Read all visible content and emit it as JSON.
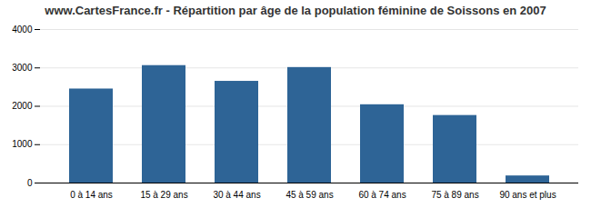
{
  "chart_data": {
    "type": "bar",
    "title": "www.CartesFrance.fr - Répartition par âge de la population féminine de Soissons en 2007",
    "categories": [
      "0 à 14 ans",
      "15 à 29 ans",
      "30 à 44 ans",
      "45 à 59 ans",
      "60 à 74 ans",
      "75 à 89 ans",
      "90 ans et plus"
    ],
    "values": [
      2450,
      3060,
      2650,
      3010,
      2040,
      1760,
      185
    ],
    "color": "#2e6496",
    "ylim": [
      0,
      4000
    ],
    "yticks": [
      0,
      1000,
      2000,
      3000,
      4000
    ],
    "grid": true
  }
}
